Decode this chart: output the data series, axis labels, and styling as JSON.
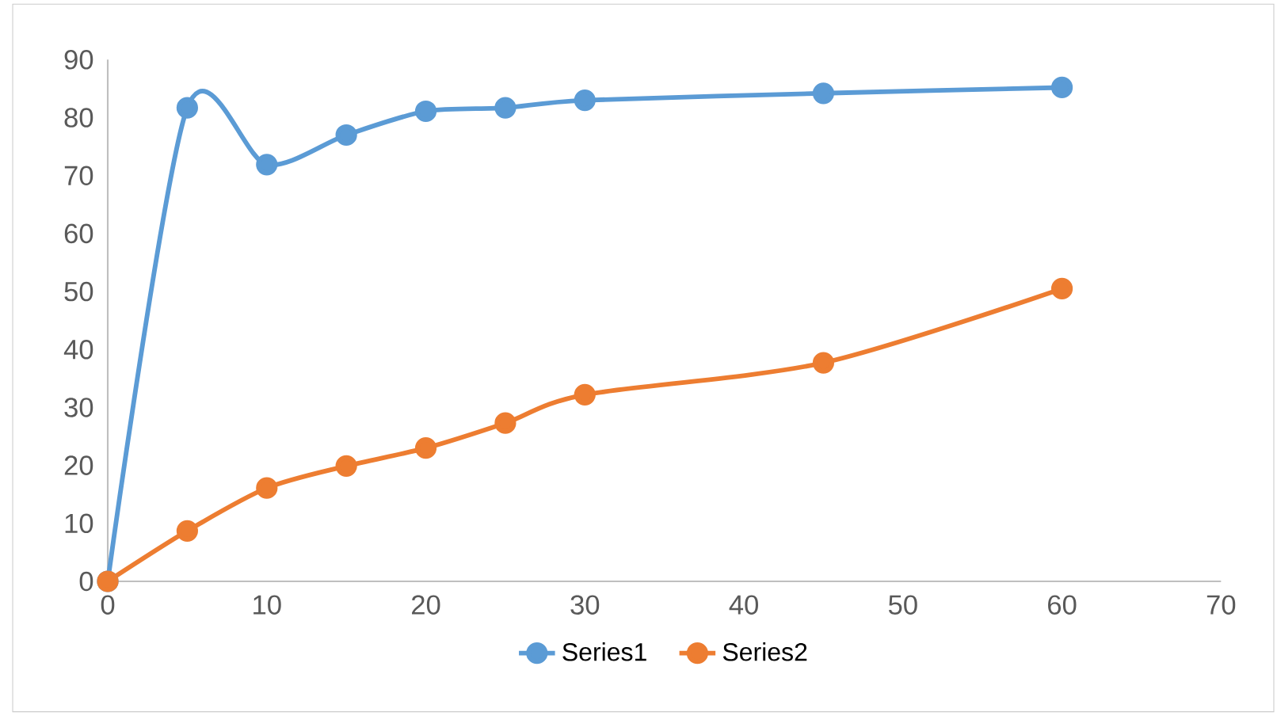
{
  "chart_data": {
    "type": "line",
    "x": [
      0,
      5,
      10,
      15,
      20,
      25,
      30,
      45,
      60
    ],
    "series": [
      {
        "name": "Series1",
        "color": "#5b9bd5",
        "values": [
          0,
          81.7,
          71.9,
          77,
          81.1,
          81.7,
          83,
          84.2,
          85.2
        ]
      },
      {
        "name": "Series2",
        "color": "#ed7d31",
        "values": [
          0,
          8.7,
          16.1,
          19.9,
          23,
          27.3,
          32.2,
          37.7,
          50.5
        ]
      }
    ],
    "xlim": [
      0,
      70
    ],
    "ylim": [
      0,
      90
    ],
    "xticks": [
      0,
      10,
      20,
      30,
      40,
      50,
      60,
      70
    ],
    "yticks": [
      0,
      10,
      20,
      30,
      40,
      50,
      60,
      70,
      80,
      90
    ],
    "legend": "bottom",
    "marker": "circle",
    "line_style": "solid"
  }
}
